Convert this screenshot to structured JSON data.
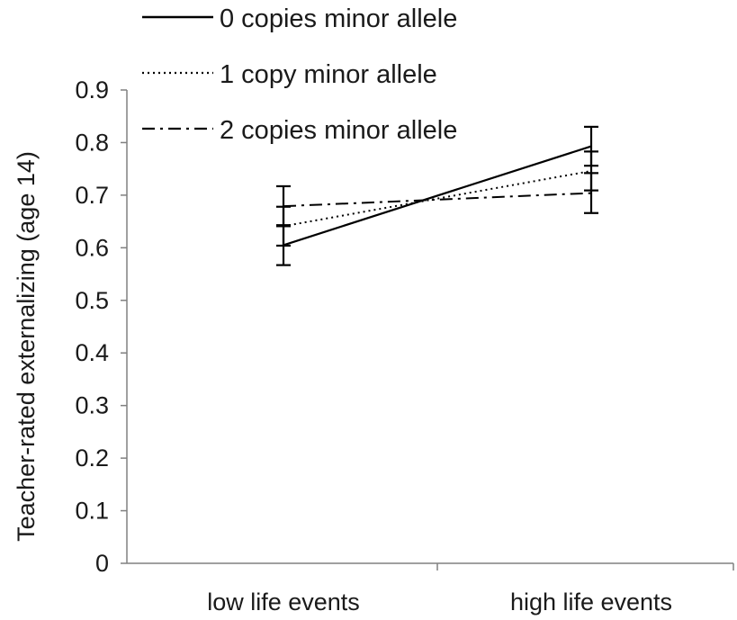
{
  "chart_data": {
    "type": "line",
    "title": "",
    "xlabel": "",
    "ylabel": "Teacher-rated externalizing (age 14)",
    "ylim": [
      0,
      0.9
    ],
    "yticks": [
      "0",
      "0.1",
      "0.2",
      "0.3",
      "0.4",
      "0.5",
      "0.6",
      "0.7",
      "0.8",
      "0.9"
    ],
    "categories": [
      "low life events",
      "high life events"
    ],
    "grid": false,
    "legend_position": "top-left",
    "series": [
      {
        "name": "0 copies minor allele",
        "style": "solid",
        "color": "#000000",
        "values": [
          0.605,
          0.793
        ],
        "error": [
          0.038,
          0.037
        ]
      },
      {
        "name": "1 copy minor allele",
        "style": "dotted",
        "color": "#000000",
        "values": [
          0.641,
          0.746
        ],
        "error": [
          0.037,
          0.037
        ]
      },
      {
        "name": "2 copies minor allele",
        "style": "dash-dot",
        "color": "#000000",
        "values": [
          0.679,
          0.704
        ],
        "error": [
          0.038,
          0.038
        ]
      }
    ]
  }
}
